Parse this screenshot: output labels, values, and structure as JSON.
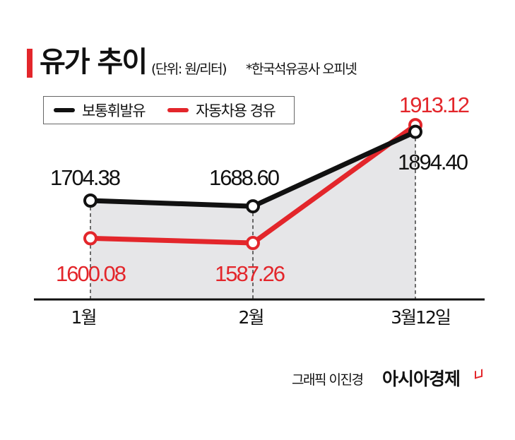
{
  "header": {
    "title": "유가 추이",
    "unit": "(단위: 원/리터)",
    "source": "*한국석유공사 오피넷"
  },
  "legend": [
    {
      "label": "보통휘발유",
      "color": "#111111"
    },
    {
      "label": "자동차용 경유",
      "color": "#e3262b"
    }
  ],
  "footer": {
    "credit": "그래픽 이진경",
    "brand": "아시아경제"
  },
  "colors": {
    "accent": "#e3262b",
    "gasoline": "#111111",
    "diesel": "#e3262b",
    "area_fill": "#e6e6e8",
    "axis": "#111111"
  },
  "chart_data": {
    "type": "line",
    "title": "유가 추이",
    "subtitle": "(단위: 원/리터) *한국석유공사 오피넷",
    "xlabel": "",
    "ylabel": "원/리터",
    "categories": [
      "1월",
      "2월",
      "3월 12일"
    ],
    "series": [
      {
        "name": "보통휘발유",
        "values": [
          1704.38,
          1688.6,
          1894.4
        ],
        "labels": [
          "1704.38",
          "1688.60",
          "1894.40"
        ],
        "color": "#111111"
      },
      {
        "name": "자동차용 경유",
        "values": [
          1600.08,
          1587.26,
          1913.12
        ],
        "labels": [
          "1600.08",
          "1587.26",
          "1913.12"
        ],
        "color": "#e3262b"
      }
    ],
    "grid": false,
    "legend_position": "top-left",
    "area_fill_under": "보통휘발유"
  }
}
